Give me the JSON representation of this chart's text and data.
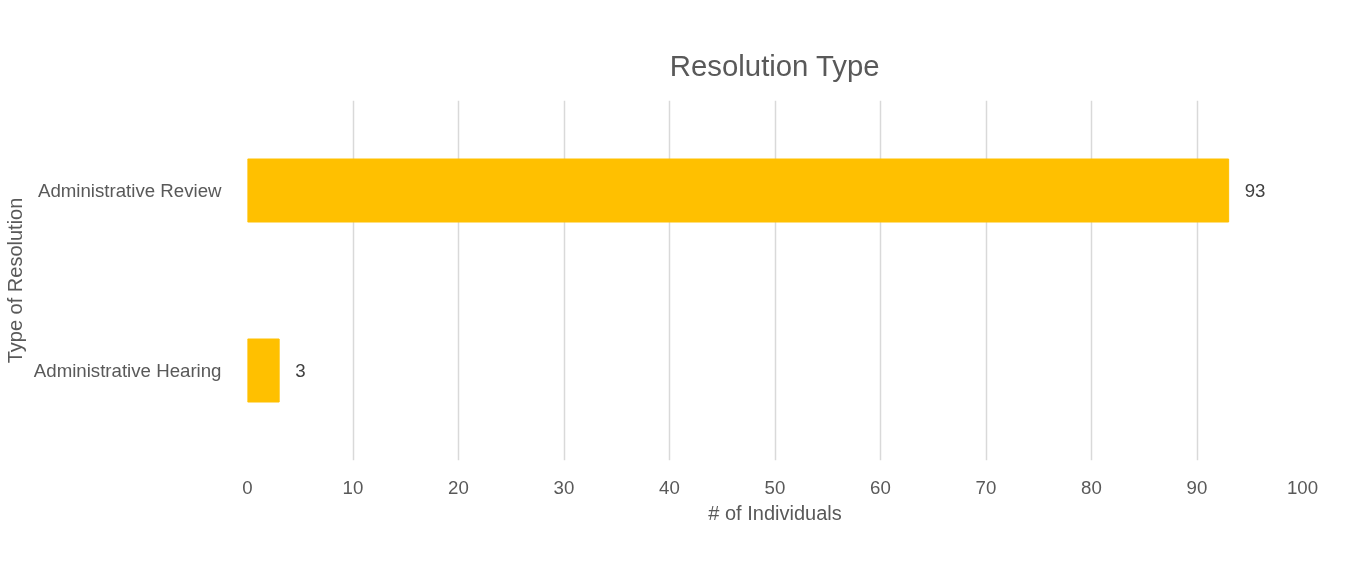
{
  "chart_data": {
    "type": "bar",
    "orientation": "horizontal",
    "title": "Resolution Type",
    "xlabel": "# of Individuals",
    "ylabel": "Type of Resolution",
    "categories": [
      "Administrative Review",
      "Administrative Hearing"
    ],
    "values": [
      93,
      3
    ],
    "color": "#ffc000",
    "xlim": [
      0,
      100
    ],
    "xticks": [
      0,
      10,
      20,
      30,
      40,
      50,
      60,
      70,
      80,
      90,
      100
    ],
    "grid": "x",
    "data_labels": true
  }
}
